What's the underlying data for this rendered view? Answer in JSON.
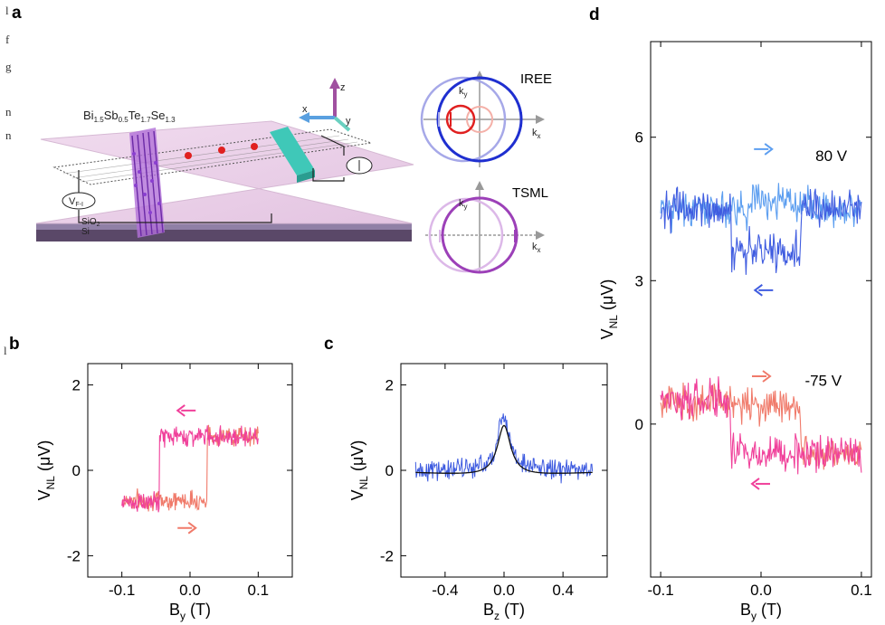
{
  "edge_text": [
    "l",
    "f",
    "g",
    "n",
    "n",
    "l"
  ],
  "panels": {
    "a": "a",
    "b": "b",
    "c": "c",
    "d": "d"
  },
  "schematic": {
    "material": {
      "main": "Bi",
      "s1": "1.5",
      "m2": "Sb",
      "s2": "0.5",
      "m3": "Te",
      "s3": "1.7",
      "m4": "Se",
      "s4": "1.3"
    },
    "axes": {
      "x": "x",
      "y": "y",
      "z": "z"
    },
    "substrate": {
      "sio2": "SiO",
      "sio2_sub": "2",
      "si": "Si"
    },
    "voltage": {
      "main": "V",
      "sub": "F-I"
    },
    "iree": {
      "title": "IREE",
      "ky": "k",
      "ky_sub": "y",
      "kx": "k",
      "kx_sub": "x"
    },
    "tsml": {
      "title": "TSML",
      "ky": "k",
      "ky_sub": "y",
      "kx": "k",
      "kx_sub": "x"
    }
  },
  "colors": {
    "pink": "#f0409a",
    "salmon": "#f07a6a",
    "blue": "#3f5ce0",
    "lightblue": "#5c9ef0",
    "darkblue": "#1f2fd0",
    "red": "#e02020",
    "purple": "#a050c0",
    "fit": "#111111",
    "magenta_arrow": "#e0409a"
  },
  "chart_data": [
    {
      "panel": "b",
      "type": "line",
      "xlabel": "B",
      "xlabel_sub": "y",
      "xlabel_unit": " (T)",
      "ylabel": "V",
      "ylabel_sub": "NL",
      "ylabel_unit": " (μV)",
      "xlim": [
        -0.15,
        0.15
      ],
      "ylim": [
        -2.5,
        2.5
      ],
      "xticks": [
        -0.1,
        0.0,
        0.1
      ],
      "xtick_labels": [
        "-0.1",
        "0.0",
        "0.1"
      ],
      "yticks": [
        -2,
        0,
        2
      ],
      "ytick_labels": [
        "-2",
        "0",
        "2"
      ],
      "series": [
        {
          "sweep": "up",
          "color": "salmon",
          "x_range": [
            -0.1,
            0.1
          ],
          "switch_x": 0.025,
          "low": -0.7,
          "high": 0.8
        },
        {
          "sweep": "down",
          "color": "pink",
          "x_range": [
            -0.1,
            0.1
          ],
          "switch_x": -0.045,
          "low": -0.75,
          "high": 0.8
        }
      ],
      "arrows": [
        {
          "dir": "left",
          "color": "pink",
          "x": -0.005,
          "y": 1.4
        },
        {
          "dir": "right",
          "color": "salmon",
          "x": -0.005,
          "y": -1.35
        }
      ]
    },
    {
      "panel": "c",
      "type": "line",
      "xlabel": "B",
      "xlabel_sub": "z",
      "xlabel_unit": " (T)",
      "ylabel": "V",
      "ylabel_sub": "NL",
      "ylabel_unit": " (μV)",
      "xlim": [
        -0.7,
        0.7
      ],
      "ylim": [
        -2.5,
        2.5
      ],
      "xticks": [
        -0.4,
        0.0,
        0.4
      ],
      "xtick_labels": [
        "-0.4",
        "0.0",
        "0.4"
      ],
      "yticks": [
        -2,
        0,
        2
      ],
      "ytick_labels": [
        "-2",
        "0",
        "2"
      ],
      "series": [
        {
          "kind": "data",
          "color": "blue",
          "x_range": [
            -0.6,
            0.6
          ],
          "peak_x": 0.0,
          "peak_y": 1.3,
          "width": 0.05
        },
        {
          "kind": "fit",
          "color": "fit",
          "x_range": [
            -0.6,
            0.6
          ],
          "peak_x": 0.0,
          "peak_y": 1.2,
          "width": 0.055
        }
      ]
    },
    {
      "panel": "d",
      "type": "line",
      "xlabel": "B",
      "xlabel_sub": "y",
      "xlabel_unit": " (T)",
      "ylabel": "V",
      "ylabel_sub": "NL",
      "ylabel_unit": " (μV)",
      "xlim": [
        -0.11,
        0.11
      ],
      "ylim": [
        -3.2,
        8.0
      ],
      "xticks": [
        -0.1,
        0.0,
        0.1
      ],
      "xtick_labels": [
        "-0.1",
        "0.0",
        "0.1"
      ],
      "yticks": [
        0,
        3,
        6
      ],
      "ytick_labels": [
        "0",
        "3",
        "6"
      ],
      "annotations": [
        {
          "text": "80 V",
          "x": 0.07,
          "y": 5.5
        },
        {
          "text": "-75 V",
          "x": 0.062,
          "y": 0.8
        }
      ],
      "series": [
        {
          "gate": "80 V",
          "sweep": "up",
          "color": "lightblue",
          "x_range": [
            -0.1,
            0.1
          ],
          "base": 4.5,
          "dip": 4.5,
          "switch_x": 0.035
        },
        {
          "gate": "80 V",
          "sweep": "down",
          "color": "blue",
          "x_range": [
            -0.1,
            0.1
          ],
          "base": 4.5,
          "dip": 3.6,
          "switch_x": -0.03
        },
        {
          "gate": "-75 V",
          "sweep": "up",
          "color": "salmon",
          "x_range": [
            -0.1,
            0.1
          ],
          "base": 0.5,
          "dip": -0.6,
          "switch_x": 0.04
        },
        {
          "gate": "-75 V",
          "sweep": "down",
          "color": "pink",
          "x_range": [
            -0.1,
            0.1
          ],
          "base": 0.5,
          "dip": -0.6,
          "switch_x": -0.03
        }
      ],
      "arrows": [
        {
          "dir": "right",
          "color": "lightblue",
          "x": 0.002,
          "y": 5.75
        },
        {
          "dir": "left",
          "color": "blue",
          "x": 0.003,
          "y": 2.8
        },
        {
          "dir": "right",
          "color": "salmon",
          "x": 0.0,
          "y": 1.0
        },
        {
          "dir": "left",
          "color": "pink",
          "x": 0.0,
          "y": -1.25
        }
      ]
    }
  ]
}
